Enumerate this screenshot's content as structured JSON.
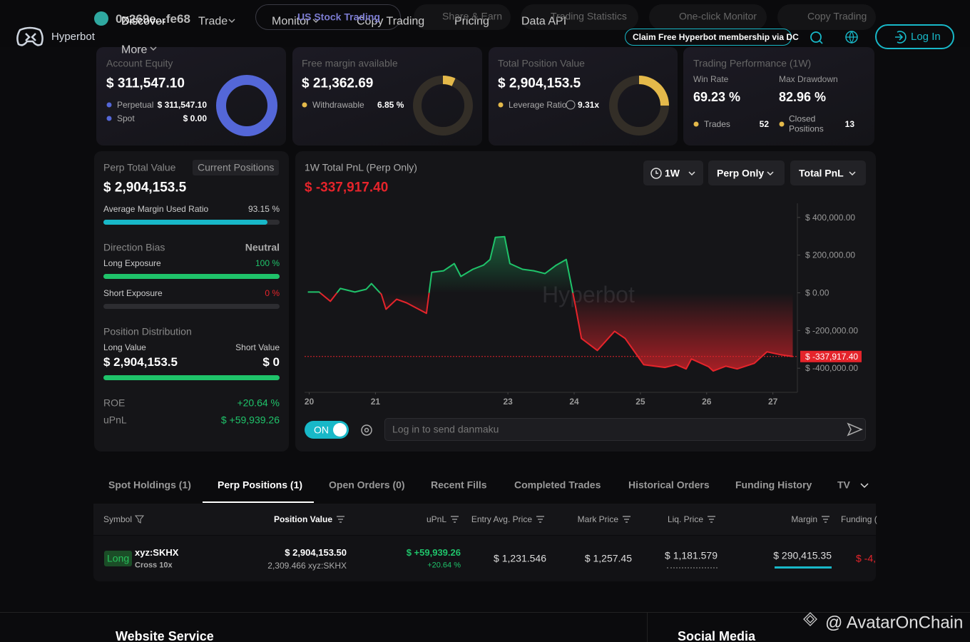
{
  "nav": {
    "brand": "Hyperbot",
    "address": "0x269e...fe68",
    "menu": [
      "Discover",
      "Trade",
      "Monitor",
      "Copy Trading",
      "Pricing",
      "Data API",
      "More"
    ],
    "tabs": [
      "US Stock Trading",
      "Share & Earn",
      "Trading Statistics",
      "One-click Monitor",
      "Copy Trading"
    ],
    "promo": "Claim Free Hyperbot membership via DC",
    "login": "Log In"
  },
  "account_equity": {
    "title": "Account Equity",
    "value": "$ 311,547.10",
    "perpetual_label": "Perpetual",
    "perpetual": "$ 311,547.10",
    "spot_label": "Spot",
    "spot": "$ 0.00"
  },
  "free_margin": {
    "title": "Free margin available",
    "value": "$ 21,362.69",
    "withdrawable_label": "Withdrawable",
    "withdrawable": {
      "value": 6.85,
      "label": "6.85 %"
    }
  },
  "position_value": {
    "title": "Total Position Value",
    "value": "$ 2,904,153.5",
    "leverage_label": "Leverage Ratio",
    "leverage": "9.31x"
  },
  "performance": {
    "title": "Trading Performance (1W)",
    "win_rate_label": "Win Rate",
    "win_rate": "69.23 %",
    "max_drawdown_label": "Max Drawdown",
    "max_drawdown": "82.96 %",
    "trades_label": "Trades",
    "trades": 52,
    "closed_label": "Closed Positions",
    "closed": 13
  },
  "perp": {
    "title": "Perp Total Value",
    "button": "Current Positions",
    "value": "$ 2,904,153.5",
    "margin_label": "Average Margin Used Ratio",
    "margin_ratio": {
      "value": 93.15,
      "label": "93.15 %"
    },
    "bias_label": "Direction Bias",
    "bias": "Neutral",
    "long_label": "Long Exposure",
    "long_exposure": {
      "value": 100,
      "label": "100 %"
    },
    "short_label": "Short Exposure",
    "short_exposure": {
      "value": 0,
      "label": "0 %"
    },
    "distribution_label": "Position Distribution",
    "long_value_label": "Long Value",
    "short_value_label": "Short Value",
    "long_value": "$ 2,904,153.5",
    "short_value": "$ 0",
    "roe_label": "ROE",
    "roe": "+20.64 %",
    "upnl_label": "uPnL",
    "upnl": "$ +59,939.26"
  },
  "chart_data": {
    "type": "line",
    "title": "1W Total PnL (Perp Only)",
    "current_value": "$ -337,917.40",
    "watermark": "Hyperbot",
    "controls": [
      "1W",
      "Perp Only",
      "Total PnL"
    ],
    "x": [
      19.98,
      20.15,
      20.32,
      20.47,
      20.69,
      20.86,
      20.94,
      21.09,
      21.16,
      21.32,
      21.47,
      21.61,
      21.77,
      21.85,
      22.03,
      22.19,
      22.29,
      22.47,
      22.63,
      22.73,
      22.81,
      22.95,
      23.03,
      23.22,
      23.39,
      23.56,
      23.73,
      23.88,
      24.02,
      24.11,
      24.35,
      24.61,
      24.77,
      25.05,
      25.37,
      25.54,
      25.69,
      25.77,
      26.03,
      26.1,
      26.29,
      26.46,
      26.72,
      26.91,
      27.11,
      27.3
    ],
    "values": [
      4000,
      4000,
      -45000,
      23000,
      4000,
      19000,
      49000,
      -8000,
      -87000,
      -34000,
      -53000,
      -79000,
      -109000,
      109000,
      117000,
      155000,
      87000,
      125000,
      147000,
      177000,
      294000,
      298000,
      155000,
      125000,
      117000,
      102000,
      147000,
      177000,
      -72000,
      -242000,
      -306000,
      -204000,
      -242000,
      -381000,
      -396000,
      -381000,
      -404000,
      -351000,
      -392000,
      -415000,
      -389000,
      -404000,
      -374000,
      -313000,
      -328000,
      -337917.4
    ],
    "xlim": [
      19.93,
      27.37
    ],
    "ylim": [
      -528000,
      475000
    ],
    "xticks": [
      20,
      21,
      23,
      24,
      25,
      26,
      27
    ],
    "yticks": [
      {
        "value": 400000,
        "label": "$ 400,000.00"
      },
      {
        "value": 200000,
        "label": "$ 200,000.00"
      },
      {
        "value": 0,
        "label": "$ 0.00"
      },
      {
        "value": -200000,
        "label": "$ -200,000.00"
      },
      {
        "value": -400000,
        "label": "$ -400,000.00"
      }
    ],
    "up_color": "#1fc36a",
    "down_color": "#e5242b"
  },
  "danmaku": {
    "toggle": "ON",
    "placeholder": "Log in to send danmaku"
  },
  "tabs": [
    "Spot Holdings (1)",
    "Perp Positions (1)",
    "Open Orders (0)",
    "Recent Fills",
    "Completed Trades",
    "Historical Orders",
    "Funding History",
    "TV"
  ],
  "table": {
    "headers": [
      "Symbol",
      "Position Value",
      "uPnL",
      "Entry Avg. Price",
      "Mark Price",
      "Liq. Price",
      "Margin",
      "Funding ("
    ],
    "rows": [
      [
        "Long",
        "xyz:SKHX",
        "Cross 10x",
        "$ 2,904,153.50",
        "2,309.466 xyz:SKHX",
        "$ +59,939.26",
        "+20.64 %",
        "$ 1,231.546",
        "$ 1,257.45",
        "$ 1,181.579",
        "$ 290,415.35",
        "$ -4,"
      ]
    ]
  },
  "footer": {
    "watermark": "@ AvatarOnChain",
    "sections": [
      "Website Service",
      "Social Media"
    ]
  }
}
